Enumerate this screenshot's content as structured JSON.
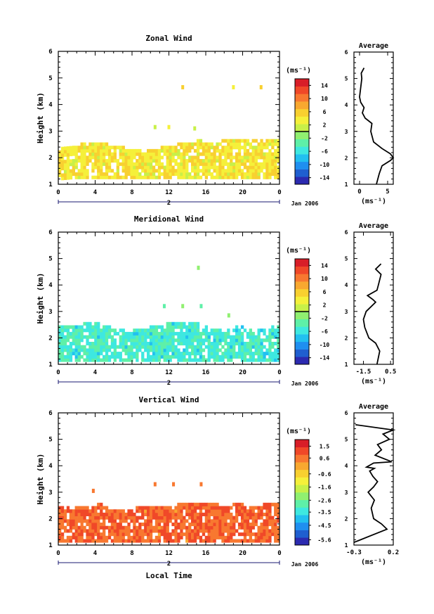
{
  "panels": [
    {
      "id": "zonal",
      "title": "Zonal Wind",
      "ylabel": "Height (km)",
      "yticks": [
        "1",
        "2",
        "3",
        "4",
        "5",
        "6"
      ],
      "xticks": [
        "0",
        "4",
        "8",
        "12",
        "16",
        "20",
        "0"
      ],
      "day_label": "2",
      "date_label": "Jan 2006",
      "colorbar": {
        "unit": "(ms⁻¹)",
        "labels": [
          "14",
          "10",
          "6",
          "2",
          "-2",
          "-6",
          "-10",
          "-14"
        ],
        "range": [
          -16,
          16
        ],
        "zero_line": 0
      },
      "average": {
        "title": "Average",
        "xlabel": "(ms⁻¹)",
        "xticks": [
          "0",
          "5"
        ],
        "yticks": [
          "1",
          "2",
          "3",
          "4",
          "5",
          "6"
        ]
      }
    },
    {
      "id": "meridional",
      "title": "Meridional Wind",
      "ylabel": "Height (km)",
      "yticks": [
        "1",
        "2",
        "3",
        "4",
        "5",
        "6"
      ],
      "xticks": [
        "0",
        "4",
        "8",
        "12",
        "16",
        "20",
        "0"
      ],
      "day_label": "2",
      "date_label": "Jan 2006",
      "colorbar": {
        "unit": "(ms⁻¹)",
        "labels": [
          "14",
          "10",
          "6",
          "2",
          "-2",
          "-6",
          "-10",
          "-14"
        ],
        "range": [
          -16,
          16
        ],
        "zero_line": 0
      },
      "average": {
        "title": "Average",
        "xlabel": "(ms⁻¹)",
        "xticks": [
          "-1.5",
          "0.5"
        ],
        "yticks": [
          "1",
          "2",
          "3",
          "4",
          "5",
          "6"
        ]
      }
    },
    {
      "id": "vertical",
      "title": "Vertical Wind",
      "ylabel": "Height (km)",
      "yticks": [
        "1",
        "2",
        "3",
        "4",
        "5",
        "6"
      ],
      "xticks": [
        "0",
        "4",
        "8",
        "12",
        "16",
        "20",
        "0"
      ],
      "day_label": "2",
      "date_label": "Jan 2006",
      "xlabel": "Local Time",
      "colorbar": {
        "unit": "(ms⁻¹)",
        "labels": [
          "1.5",
          "0.6",
          "-0.6",
          "-1.6",
          "-2.6",
          "-3.5",
          "-4.5",
          "-5.6"
        ],
        "range": [
          -6,
          2
        ],
        "zero_line": null
      },
      "average": {
        "title": "Average",
        "xlabel": "(ms⁻¹)",
        "xticks": [
          "-0.3",
          "0.2"
        ],
        "yticks": [
          "1",
          "2",
          "3",
          "4",
          "5",
          "6"
        ]
      }
    }
  ],
  "chart_data": [
    {
      "type": "heatmap",
      "title": "Zonal Wind",
      "xlabel": "",
      "ylabel": "Height (km)",
      "xlim": [
        0,
        24
      ],
      "ylim": [
        1,
        6
      ],
      "colorbar_range": [
        -16,
        16
      ],
      "filled_region": {
        "x": [
          0.0,
          1.5,
          3.0,
          4.5,
          6.0,
          7.5,
          9.0,
          10.5,
          12.0,
          13.5,
          15.0,
          16.5,
          18.0,
          19.5,
          21.0,
          22.5,
          24.0
        ],
        "bottom_km": [
          1.15,
          1.2,
          1.2,
          1.2,
          1.2,
          1.2,
          1.2,
          1.2,
          1.2,
          1.2,
          1.2,
          1.2,
          1.2,
          1.2,
          1.2,
          1.2,
          1.2
        ],
        "top_km": [
          2.4,
          2.4,
          2.5,
          2.5,
          2.4,
          2.3,
          2.2,
          2.3,
          2.4,
          2.5,
          2.6,
          2.5,
          2.6,
          2.6,
          2.6,
          2.6,
          2.6
        ],
        "typical_value": 4
      },
      "sparse_points": [
        {
          "x": 13.5,
          "y": 4.65,
          "value": 6
        },
        {
          "x": 19.0,
          "y": 4.65,
          "value": 4
        },
        {
          "x": 22.0,
          "y": 4.65,
          "value": 5
        },
        {
          "x": 10.5,
          "y": 3.15,
          "value": 2
        },
        {
          "x": 12.0,
          "y": 3.15,
          "value": 3
        },
        {
          "x": 14.8,
          "y": 3.1,
          "value": 2
        }
      ]
    },
    {
      "type": "line",
      "title": "Average",
      "xlabel": "(ms⁻¹)",
      "ylabel": "",
      "xlim": [
        -1,
        6
      ],
      "ylim": [
        1,
        6
      ],
      "series": [
        {
          "x": [
            3.0,
            3.5,
            4.0,
            5.5,
            6.0,
            5.5,
            4.0,
            2.5,
            2.0,
            2.2,
            1.0,
            0.5,
            0.8,
            0.2,
            0.0,
            0.4,
            0.3,
            0.8
          ],
          "y": [
            1.0,
            1.4,
            1.7,
            1.9,
            2.0,
            2.15,
            2.35,
            2.6,
            3.0,
            3.3,
            3.5,
            3.7,
            3.9,
            4.1,
            4.3,
            5.0,
            5.2,
            5.4
          ]
        }
      ]
    },
    {
      "type": "heatmap",
      "title": "Meridional Wind",
      "xlabel": "",
      "ylabel": "Height (km)",
      "xlim": [
        0,
        24
      ],
      "ylim": [
        1,
        6
      ],
      "colorbar_range": [
        -16,
        16
      ],
      "filled_region": {
        "x": [
          0.0,
          1.5,
          3.0,
          4.5,
          6.0,
          7.5,
          9.0,
          10.5,
          12.0,
          13.5,
          15.0,
          16.5,
          18.0,
          19.5,
          21.0,
          22.5,
          24.0
        ],
        "bottom_km": [
          1.1,
          1.1,
          1.1,
          1.1,
          1.1,
          1.1,
          1.1,
          1.1,
          1.1,
          1.1,
          1.1,
          1.1,
          1.1,
          1.1,
          1.1,
          1.1,
          1.1
        ],
        "top_km": [
          2.4,
          2.4,
          2.5,
          2.5,
          2.3,
          2.2,
          2.3,
          2.4,
          2.5,
          2.6,
          2.5,
          2.3,
          2.2,
          2.4,
          2.2,
          2.3,
          2.5
        ],
        "typical_value": -5
      },
      "sparse_points": [
        {
          "x": 15.2,
          "y": 4.65,
          "value": -2
        },
        {
          "x": 11.5,
          "y": 3.2,
          "value": -3
        },
        {
          "x": 13.5,
          "y": 3.2,
          "value": -2
        },
        {
          "x": 15.5,
          "y": 3.2,
          "value": -3
        },
        {
          "x": 18.5,
          "y": 2.85,
          "value": -2
        }
      ]
    },
    {
      "type": "line",
      "title": "Average",
      "xlabel": "(ms⁻¹)",
      "ylabel": "",
      "xlim": [
        -2.2,
        0.7
      ],
      "ylim": [
        1,
        6
      ],
      "series": [
        {
          "x": [
            -0.5,
            -0.3,
            -0.6,
            -1.1,
            -1.4,
            -1.5,
            -1.3,
            -0.6,
            -0.8,
            -1.2,
            -0.5,
            -0.4,
            -0.2,
            -0.6,
            -0.2
          ],
          "y": [
            1.0,
            1.5,
            1.8,
            2.0,
            2.4,
            2.7,
            3.0,
            3.35,
            3.45,
            3.6,
            3.8,
            4.0,
            4.4,
            4.6,
            4.8
          ]
        }
      ]
    },
    {
      "type": "heatmap",
      "title": "Vertical Wind",
      "xlabel": "Local Time",
      "ylabel": "Height (km)",
      "xlim": [
        0,
        24
      ],
      "ylim": [
        1,
        6
      ],
      "colorbar_range": [
        -6,
        2
      ],
      "filled_region": {
        "x": [
          0.0,
          1.5,
          3.0,
          4.5,
          6.0,
          7.5,
          9.0,
          10.5,
          12.0,
          13.5,
          15.0,
          16.5,
          18.0,
          19.5,
          21.0,
          22.5,
          24.0
        ],
        "bottom_km": [
          1.1,
          1.1,
          1.1,
          1.1,
          1.1,
          1.1,
          1.1,
          1.1,
          1.1,
          1.1,
          1.1,
          1.1,
          1.1,
          1.1,
          1.1,
          1.1,
          1.1
        ],
        "top_km": [
          2.4,
          2.4,
          2.45,
          2.5,
          2.3,
          2.3,
          2.4,
          2.4,
          2.45,
          2.5,
          2.6,
          2.5,
          2.45,
          2.5,
          2.4,
          2.5,
          2.5
        ],
        "typical_value": 0.8
      },
      "sparse_points": [
        {
          "x": 10.5,
          "y": 3.3,
          "value": 0.6
        },
        {
          "x": 12.5,
          "y": 3.3,
          "value": 0.6
        },
        {
          "x": 15.5,
          "y": 3.3,
          "value": 0.8
        },
        {
          "x": 3.8,
          "y": 3.05,
          "value": 0.6
        }
      ]
    },
    {
      "type": "line",
      "title": "Average",
      "xlabel": "(ms⁻¹)",
      "ylabel": "",
      "xlim": [
        -0.3,
        0.2
      ],
      "ylim": [
        1,
        6
      ],
      "series": [
        {
          "x": [
            -0.3,
            0.12,
            0.05,
            -0.05,
            -0.08,
            -0.04,
            -0.12,
            -0.05,
            0.0,
            -0.06,
            -0.1,
            -0.04,
            -0.14,
            -0.05,
            0.18,
            -0.03,
            0.05,
            0.0,
            0.15,
            0.07,
            0.2,
            -0.28
          ],
          "y": [
            1.1,
            1.6,
            1.8,
            2.0,
            2.4,
            2.7,
            3.0,
            3.2,
            3.4,
            3.6,
            3.8,
            3.9,
            3.95,
            4.1,
            4.15,
            4.4,
            4.6,
            4.8,
            5.0,
            5.2,
            5.35,
            5.55
          ]
        }
      ]
    }
  ]
}
